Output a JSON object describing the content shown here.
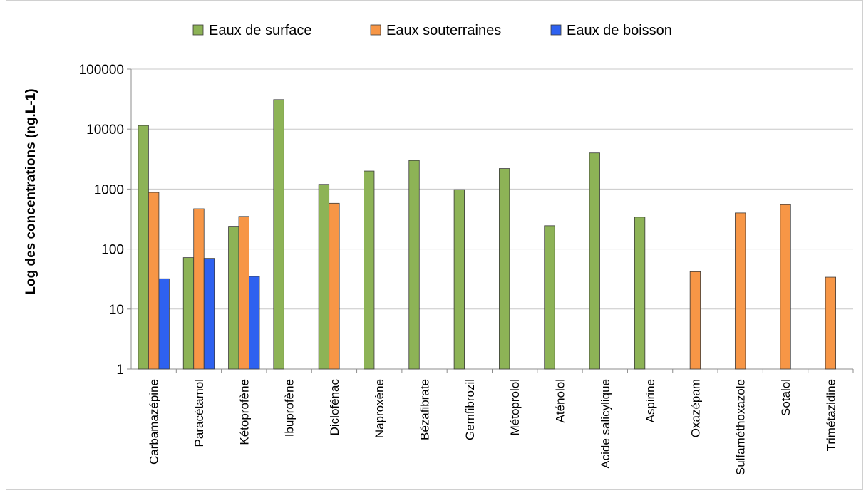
{
  "chart_data": {
    "type": "bar",
    "title": "",
    "xlabel": "",
    "ylabel": "Log des concentrations (ng.L-1)",
    "y_scale": "log",
    "ylim": [
      1,
      100000
    ],
    "y_ticks": [
      "1",
      "10",
      "100",
      "1000",
      "10000",
      "100000"
    ],
    "grid": true,
    "legend_position": "top",
    "categories": [
      "Carbamazépine",
      "Paracétamol",
      "Kétoprofène",
      "Ibuprofène",
      "Diclofénac",
      "Naproxène",
      "Bézafibrate",
      "Gemfibrozil",
      "Métoprolol",
      "Aténolol",
      "Acide salicylique",
      "Aspirine",
      "Oxazépam",
      "Sulfaméthoxazole",
      "Sotalol",
      "Trimétazidine"
    ],
    "series": [
      {
        "name": "Eaux de surface",
        "color": "#8db356",
        "values": [
          11500,
          72,
          240,
          31000,
          1200,
          2000,
          3000,
          980,
          2200,
          245,
          4000,
          340,
          null,
          null,
          null,
          null
        ]
      },
      {
        "name": "Eaux souterraines",
        "color": "#f79646",
        "values": [
          880,
          470,
          350,
          null,
          580,
          null,
          null,
          null,
          null,
          null,
          null,
          null,
          42,
          400,
          550,
          34
        ]
      },
      {
        "name": "Eaux de boisson",
        "color": "#2e61f0",
        "values": [
          32,
          70,
          35,
          null,
          null,
          null,
          null,
          null,
          null,
          null,
          null,
          null,
          null,
          null,
          null,
          null
        ]
      }
    ]
  }
}
